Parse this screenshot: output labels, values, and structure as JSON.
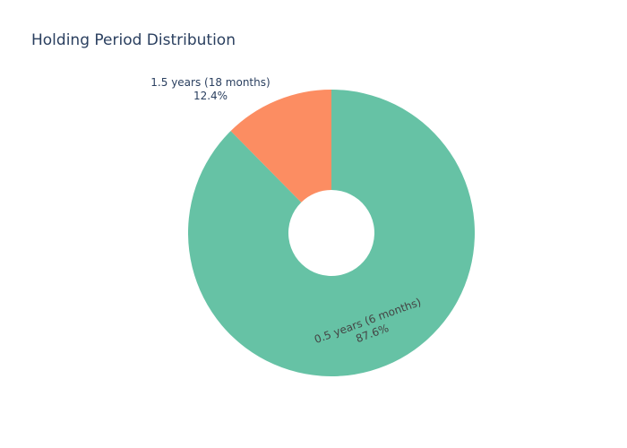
{
  "chart_data": {
    "type": "pie",
    "title": "Holding Period Distribution",
    "hole": true,
    "labels": [
      "0.5 years (6 months)",
      "1.5 years (18 months)"
    ],
    "values": [
      87.6,
      12.4
    ],
    "percent_labels": [
      "87.6%",
      "12.4%"
    ],
    "colors": [
      "#66c2a5",
      "#fc8d62"
    ],
    "label_colors": [
      "#444444",
      "#2a3f5f"
    ],
    "background": "#ffffff"
  }
}
